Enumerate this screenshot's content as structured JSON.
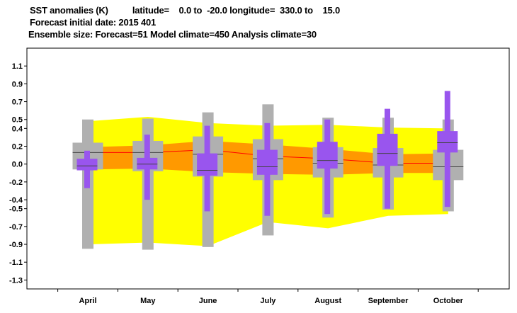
{
  "header": {
    "line1": "SST anomalies (K)          latitude=    0.0 to  -20.0 longitude=  330.0 to    15.0",
    "line2": "Forecast initial date: 2015 401",
    "line3": "Ensemble size: Forecast=51 Model climate=450 Analysis climate=30"
  },
  "chart_data": {
    "type": "box",
    "categories": [
      "April",
      "May",
      "June",
      "July",
      "August",
      "September",
      "October"
    ],
    "ylim": [
      -1.4,
      1.3
    ],
    "yticks": [
      1.1,
      0.9,
      0.7,
      0.5,
      0.4,
      0.2,
      0.0,
      -0.2,
      -0.4,
      -0.5,
      -0.7,
      -0.9,
      -1.1,
      -1.3
    ],
    "ytick_labels": [
      "1.1",
      "0.9",
      "0.7",
      "0.5",
      "0.4",
      "0.2",
      "0.0",
      "-0.2",
      "-0.4",
      "-0.5",
      "-0.7",
      "-0.9",
      "-1.1",
      "-1.3"
    ],
    "grid": false,
    "colors": {
      "climate_outer_band": "#ffff00",
      "climate_inner_band": "#ff9900",
      "analysis_line": "#ff0000",
      "model_climate_box": "#b0b0b0",
      "forecast_box": "#9955ee",
      "median_line": "#444444"
    },
    "climate_band": {
      "outer_low": [
        -0.9,
        -0.88,
        -0.92,
        -0.65,
        -0.72,
        -0.58,
        -0.56
      ],
      "outer_high": [
        0.48,
        0.53,
        0.46,
        0.43,
        0.44,
        0.41,
        0.4
      ],
      "inner_low": [
        -0.06,
        -0.05,
        -0.09,
        -0.11,
        -0.12,
        -0.1,
        -0.1
      ],
      "inner_high": [
        0.19,
        0.21,
        0.26,
        0.22,
        0.17,
        0.11,
        0.12
      ],
      "mean": [
        0.13,
        0.13,
        0.16,
        0.09,
        0.06,
        0.01,
        0.01
      ]
    },
    "model_climate": [
      {
        "min": -0.95,
        "q1": -0.06,
        "median": 0.13,
        "q3": 0.24,
        "max": 0.5
      },
      {
        "min": -0.96,
        "q1": -0.08,
        "median": 0.13,
        "q3": 0.26,
        "max": 0.51
      },
      {
        "min": -0.93,
        "q1": -0.14,
        "median": 0.11,
        "q3": 0.31,
        "max": 0.58
      },
      {
        "min": -0.8,
        "q1": -0.18,
        "median": 0.06,
        "q3": 0.28,
        "max": 0.67
      },
      {
        "min": -0.6,
        "q1": -0.15,
        "median": 0.01,
        "q3": 0.19,
        "max": 0.52
      },
      {
        "min": -0.51,
        "q1": -0.15,
        "median": -0.01,
        "q3": 0.18,
        "max": 0.52
      },
      {
        "min": -0.53,
        "q1": -0.18,
        "median": -0.03,
        "q3": 0.16,
        "max": 0.5
      }
    ],
    "forecast": [
      {
        "min": -0.27,
        "q1": -0.07,
        "median": -0.02,
        "q3": 0.06,
        "max": 0.15
      },
      {
        "min": -0.4,
        "q1": -0.06,
        "median": 0.0,
        "q3": 0.07,
        "max": 0.33
      },
      {
        "min": -0.53,
        "q1": -0.13,
        "median": -0.07,
        "q3": 0.12,
        "max": 0.43
      },
      {
        "min": -0.58,
        "q1": -0.12,
        "median": -0.03,
        "q3": 0.16,
        "max": 0.46
      },
      {
        "min": -0.56,
        "q1": -0.05,
        "median": 0.04,
        "q3": 0.25,
        "max": 0.5
      },
      {
        "min": -0.5,
        "q1": -0.02,
        "median": 0.12,
        "q3": 0.34,
        "max": 0.62
      },
      {
        "min": -0.48,
        "q1": 0.13,
        "median": 0.24,
        "q3": 0.37,
        "max": 0.82
      }
    ]
  }
}
